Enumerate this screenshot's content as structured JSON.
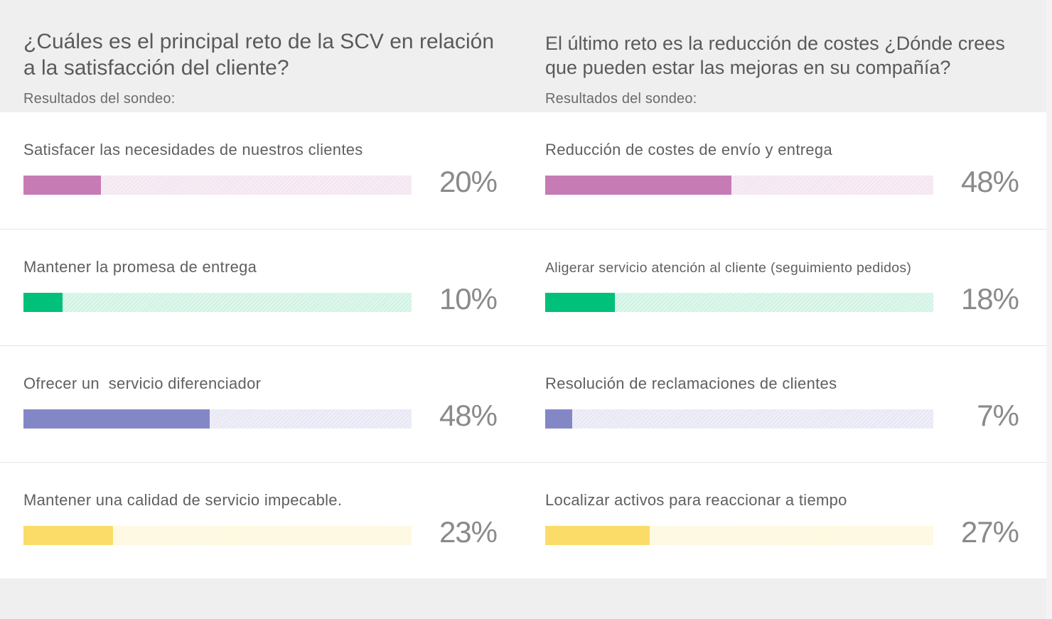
{
  "left_question": "¿Cuáles es el principal reto de la SCV en relación a la satisfacción del cliente?",
  "right_question": "El último reto es la reducción de costes ¿Dónde crees que pueden estar las mejoras en su compañía?",
  "left_subtitle": "Resultados del sondeo:",
  "right_subtitle": "Resultados del sondeo:",
  "colors": {
    "pink": "#c67bb5",
    "pink_track": "#f4e6f1",
    "green": "#00c07a",
    "green_track": "#d2f3e5",
    "purple": "#8487c6",
    "purple_track": "#e8e8f5",
    "yellow": "#fbdc68",
    "yellow_track": "#fdf8de"
  },
  "chart_data": [
    {
      "type": "bar",
      "title": "¿Cuáles es el principal reto de la SCV en relación a la satisfacción del cliente?",
      "subtitle": "Resultados del sondeo:",
      "categories": [
        "Satisfacer las necesidades de nuestros clientes",
        "Mantener la promesa de entrega",
        "Ofrecer un  servicio diferenciador",
        "Mantener una calidad de servicio impecable."
      ],
      "values": [
        20,
        10,
        48,
        23
      ],
      "labels": [
        "20%",
        "10%",
        "48%",
        "23%"
      ],
      "colors": [
        "pink",
        "green",
        "purple",
        "yellow"
      ],
      "ylim": [
        0,
        100
      ]
    },
    {
      "type": "bar",
      "title": "El último reto es la reducción de costes ¿Dónde crees que pueden estar las mejoras en su compañía?",
      "subtitle": "Resultados del sondeo:",
      "categories": [
        "Reducción de costes de envío y entrega",
        "Aligerar servicio atención al cliente (seguimiento pedidos)",
        "Resolución de reclamaciones de clientes",
        "Localizar activos para reaccionar a tiempo"
      ],
      "values": [
        48,
        18,
        7,
        27
      ],
      "labels": [
        "48%",
        "18%",
        "7%",
        "27%"
      ],
      "colors": [
        "pink",
        "green",
        "purple",
        "yellow"
      ],
      "ylim": [
        0,
        100
      ]
    }
  ]
}
